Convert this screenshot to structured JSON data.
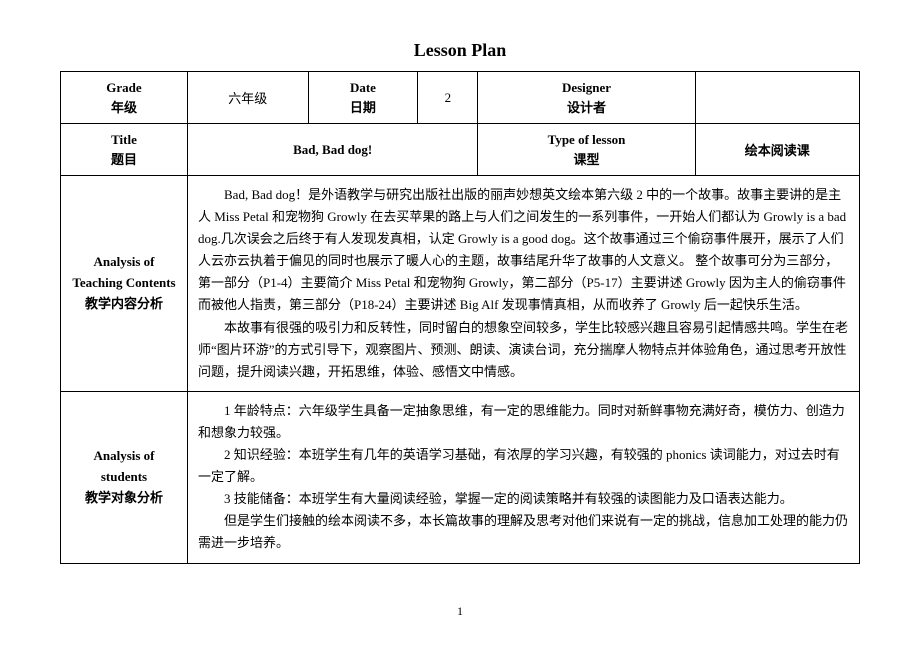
{
  "title": "Lesson Plan",
  "row1": {
    "grade_label_en": "Grade",
    "grade_label_cn": "年级",
    "grade_value": "六年级",
    "date_label_en": "Date",
    "date_label_cn": "日期",
    "date_value": "2",
    "designer_label_en": "Designer",
    "designer_label_cn": "设计者",
    "designer_value": ""
  },
  "row2": {
    "title_label_en": "Title",
    "title_label_cn": "题目",
    "title_value": "Bad, Bad dog!",
    "type_label_en": "Type of lesson",
    "type_label_cn": "课型",
    "type_value": "绘本阅读课"
  },
  "analysis_contents": {
    "label_en": "Analysis of Teaching Contents",
    "label_cn": "教学内容分析",
    "p1": "Bad, Bad dog！是外语教学与研究出版社出版的丽声妙想英文绘本第六级 2 中的一个故事。故事主要讲的是主人 Miss Petal 和宠物狗 Growly 在去买苹果的路上与人们之间发生的一系列事件，一开始人们都认为 Growly is a bad dog.几次误会之后终于有人发现发真相，认定 Growly is a good dog。这个故事通过三个偷窃事件展开，展示了人们人云亦云执着于偏见的同时也展示了暖人心的主题，故事结尾升华了故事的人文意义。 整个故事可分为三部分，第一部分（P1-4）主要简介 Miss Petal 和宠物狗 Growly，第二部分（P5-17）主要讲述 Growly 因为主人的偷窃事件而被他人指责，第三部分（P18-24）主要讲述 Big Alf 发现事情真相，从而收养了 Growly 后一起快乐生活。",
    "p2": "本故事有很强的吸引力和反转性，同时留白的想象空间较多，学生比较感兴趣且容易引起情感共鸣。学生在老师“图片环游”的方式引导下，观察图片、预测、朗读、演读台词，充分揣摩人物特点并体验角色，通过思考开放性问题，提升阅读兴趣，开拓思维，体验、感悟文中情感。"
  },
  "analysis_students": {
    "label_en": "Analysis of students",
    "label_cn": "教学对象分析",
    "p1": "1 年龄特点：六年级学生具备一定抽象思维，有一定的思维能力。同时对新鲜事物充满好奇，模仿力、创造力和想象力较强。",
    "p2": "2 知识经验：本班学生有几年的英语学习基础，有浓厚的学习兴趣，有较强的 phonics 读词能力，对过去时有一定了解。",
    "p3": "3 技能储备：本班学生有大量阅读经验，掌握一定的阅读策略并有较强的读图能力及口语表达能力。",
    "p4": "但是学生们接触的绘本阅读不多，本长篇故事的理解及思考对他们来说有一定的挑战，信息加工处理的能力仍需进一步培养。"
  },
  "page_number": "1"
}
